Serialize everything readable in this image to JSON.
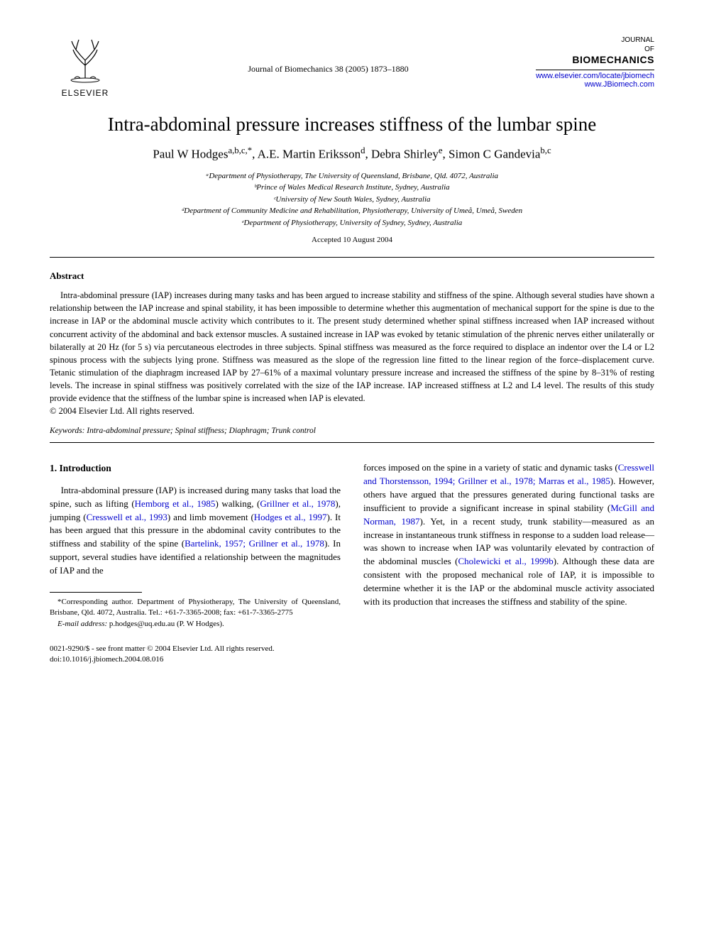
{
  "header": {
    "publisher": "ELSEVIER",
    "journal_ref": "Journal of Biomechanics 38 (2005) 1873–1880",
    "journal_lines": [
      "JOURNAL",
      "OF"
    ],
    "journal_name": "BIOMECHANICS",
    "link1": "www.elsevier.com/locate/jbiomech",
    "link2": "www.JBiomech.com"
  },
  "title": "Intra-abdominal pressure increases stiffness of the lumbar spine",
  "authors_html": "Paul W Hodges<sup>a,b,c,*</sup>, A.E. Martin Eriksson<sup>d</sup>, Debra Shirley<sup>e</sup>, Simon C Gandevia<sup>b,c</sup>",
  "affiliations": [
    "ᵃDepartment of Physiotherapy, The University of Queensland, Brisbane, Qld. 4072, Australia",
    "ᵇPrince of Wales Medical Research Institute, Sydney, Australia",
    "ᶜUniversity of New South Wales, Sydney, Australia",
    "ᵈDepartment of Community Medicine and Rehabilitation, Physiotherapy, University of Umeå, Umeå, Sweden",
    "ᵉDepartment of Physiotherapy, University of Sydney, Sydney, Australia"
  ],
  "accepted": "Accepted 10 August 2004",
  "abstract": {
    "heading": "Abstract",
    "body": "Intra-abdominal pressure (IAP) increases during many tasks and has been argued to increase stability and stiffness of the spine. Although several studies have shown a relationship between the IAP increase and spinal stability, it has been impossible to determine whether this augmentation of mechanical support for the spine is due to the increase in IAP or the abdominal muscle activity which contributes to it. The present study determined whether spinal stiffness increased when IAP increased without concurrent activity of the abdominal and back extensor muscles. A sustained increase in IAP was evoked by tetanic stimulation of the phrenic nerves either unilaterally or bilaterally at 20 Hz (for 5 s) via percutaneous electrodes in three subjects. Spinal stiffness was measured as the force required to displace an indentor over the L4 or L2 spinous process with the subjects lying prone. Stiffness was measured as the slope of the regression line fitted to the linear region of the force–displacement curve. Tetanic stimulation of the diaphragm increased IAP by 27–61% of a maximal voluntary pressure increase and increased the stiffness of the spine by 8–31% of resting levels. The increase in spinal stiffness was positively correlated with the size of the IAP increase. IAP increased stiffness at L2 and L4 level. The results of this study provide evidence that the stiffness of the lumbar spine is increased when IAP is elevated.",
    "copyright": "© 2004 Elsevier Ltd. All rights reserved."
  },
  "keywords": "Keywords: Intra-abdominal pressure; Spinal stiffness; Diaphragm; Trunk control",
  "intro": {
    "heading": "1. Introduction",
    "left": "Intra-abdominal pressure (IAP) is increased during many tasks that load the spine, such as lifting (Hemborg et al., 1985) walking, (Grillner et al., 1978), jumping (Cresswell et al., 1993) and limb movement (Hodges et al., 1997). It has been argued that this pressure in the abdominal cavity contributes to the stiffness and stability of the spine (Bartelink, 1957; Grillner et al., 1978). In support, several studies have identified a relationship between the magnitudes of IAP and the",
    "right": "forces imposed on the spine in a variety of static and dynamic tasks (Cresswell and Thorstensson, 1994; Grillner et al., 1978; Marras et al., 1985). However, others have argued that the pressures generated during functional tasks are insufficient to provide a significant increase in spinal stability (McGill and Norman, 1987). Yet, in a recent study, trunk stability—measured as an increase in instantaneous trunk stiffness in response to a sudden load release—was shown to increase when IAP was voluntarily elevated by contraction of the abdominal muscles (Cholewicki et al., 1999b). Although these data are consistent with the proposed mechanical role of IAP, it is impossible to determine whether it is the IAP or the abdominal muscle activity associated with its production that increases the stiffness and stability of the spine."
  },
  "footnote": {
    "corresponding": "*Corresponding author. Department of Physiotherapy, The University of Queensland, Brisbane, Qld. 4072, Australia. Tel.: +61-7-3365-2008; fax: +61-7-3365-2775",
    "email_label": "E-mail address:",
    "email": "p.hodges@uq.edu.au (P. W Hodges)."
  },
  "bottom": {
    "issn": "0021-9290/$ - see front matter © 2004 Elsevier Ltd. All rights reserved.",
    "doi": "doi:10.1016/j.jbiomech.2004.08.016"
  },
  "colors": {
    "text": "#000000",
    "link": "#0000cc",
    "background": "#ffffff"
  }
}
